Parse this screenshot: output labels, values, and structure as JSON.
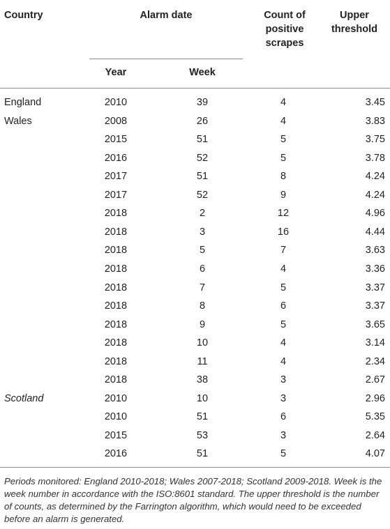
{
  "table": {
    "headers": {
      "country": "Country",
      "alarm_date": "Alarm date",
      "count_of_positive_scrapes": "Count of positive scrapes",
      "upper_threshold": "Upper threshold",
      "year": "Year",
      "week": "Week"
    },
    "rows": [
      {
        "country": "England",
        "year": "2010",
        "week": "39",
        "count": "4",
        "upper": "3.45"
      },
      {
        "country": "Wales",
        "year": "2008",
        "week": "26",
        "count": "4",
        "upper": "3.83"
      },
      {
        "country": "",
        "year": "2015",
        "week": "51",
        "count": "5",
        "upper": "3.75"
      },
      {
        "country": "",
        "year": "2016",
        "week": "52",
        "count": "5",
        "upper": "3.78"
      },
      {
        "country": "",
        "year": "2017",
        "week": "51",
        "count": "8",
        "upper": "4.24"
      },
      {
        "country": "",
        "year": "2017",
        "week": "52",
        "count": "9",
        "upper": "4.24"
      },
      {
        "country": "",
        "year": "2018",
        "week": "2",
        "count": "12",
        "upper": "4.96"
      },
      {
        "country": "",
        "year": "2018",
        "week": "3",
        "count": "16",
        "upper": "4.44"
      },
      {
        "country": "",
        "year": "2018",
        "week": "5",
        "count": "7",
        "upper": "3.63"
      },
      {
        "country": "",
        "year": "2018",
        "week": "6",
        "count": "4",
        "upper": "3.36"
      },
      {
        "country": "",
        "year": "2018",
        "week": "7",
        "count": "5",
        "upper": "3.37"
      },
      {
        "country": "",
        "year": "2018",
        "week": "8",
        "count": "6",
        "upper": "3.37"
      },
      {
        "country": "",
        "year": "2018",
        "week": "9",
        "count": "5",
        "upper": "3.65"
      },
      {
        "country": "",
        "year": "2018",
        "week": "10",
        "count": "4",
        "upper": "3.14"
      },
      {
        "country": "",
        "year": "2018",
        "week": "11",
        "count": "4",
        "upper": "2.34"
      },
      {
        "country": "",
        "year": "2018",
        "week": "38",
        "count": "3",
        "upper": "2.67"
      },
      {
        "country": "Scotland",
        "year": "2010",
        "week": "10",
        "count": "3",
        "upper": "2.96"
      },
      {
        "country": "",
        "year": "2010",
        "week": "51",
        "count": "6",
        "upper": "5.35"
      },
      {
        "country": "",
        "year": "2015",
        "week": "53",
        "count": "3",
        "upper": "2.64"
      },
      {
        "country": "",
        "year": "2016",
        "week": "51",
        "count": "5",
        "upper": "4.07"
      }
    ]
  },
  "footnote": "Periods monitored: England 2010-2018; Wales 2007-2018; Scotland 2009-2018. Week is the week number in accordance with the ISO:8601 standard. The upper threshold is the number of counts, as determined by the Farrington algorithm, which would need to be exceeded before an alarm is generated."
}
